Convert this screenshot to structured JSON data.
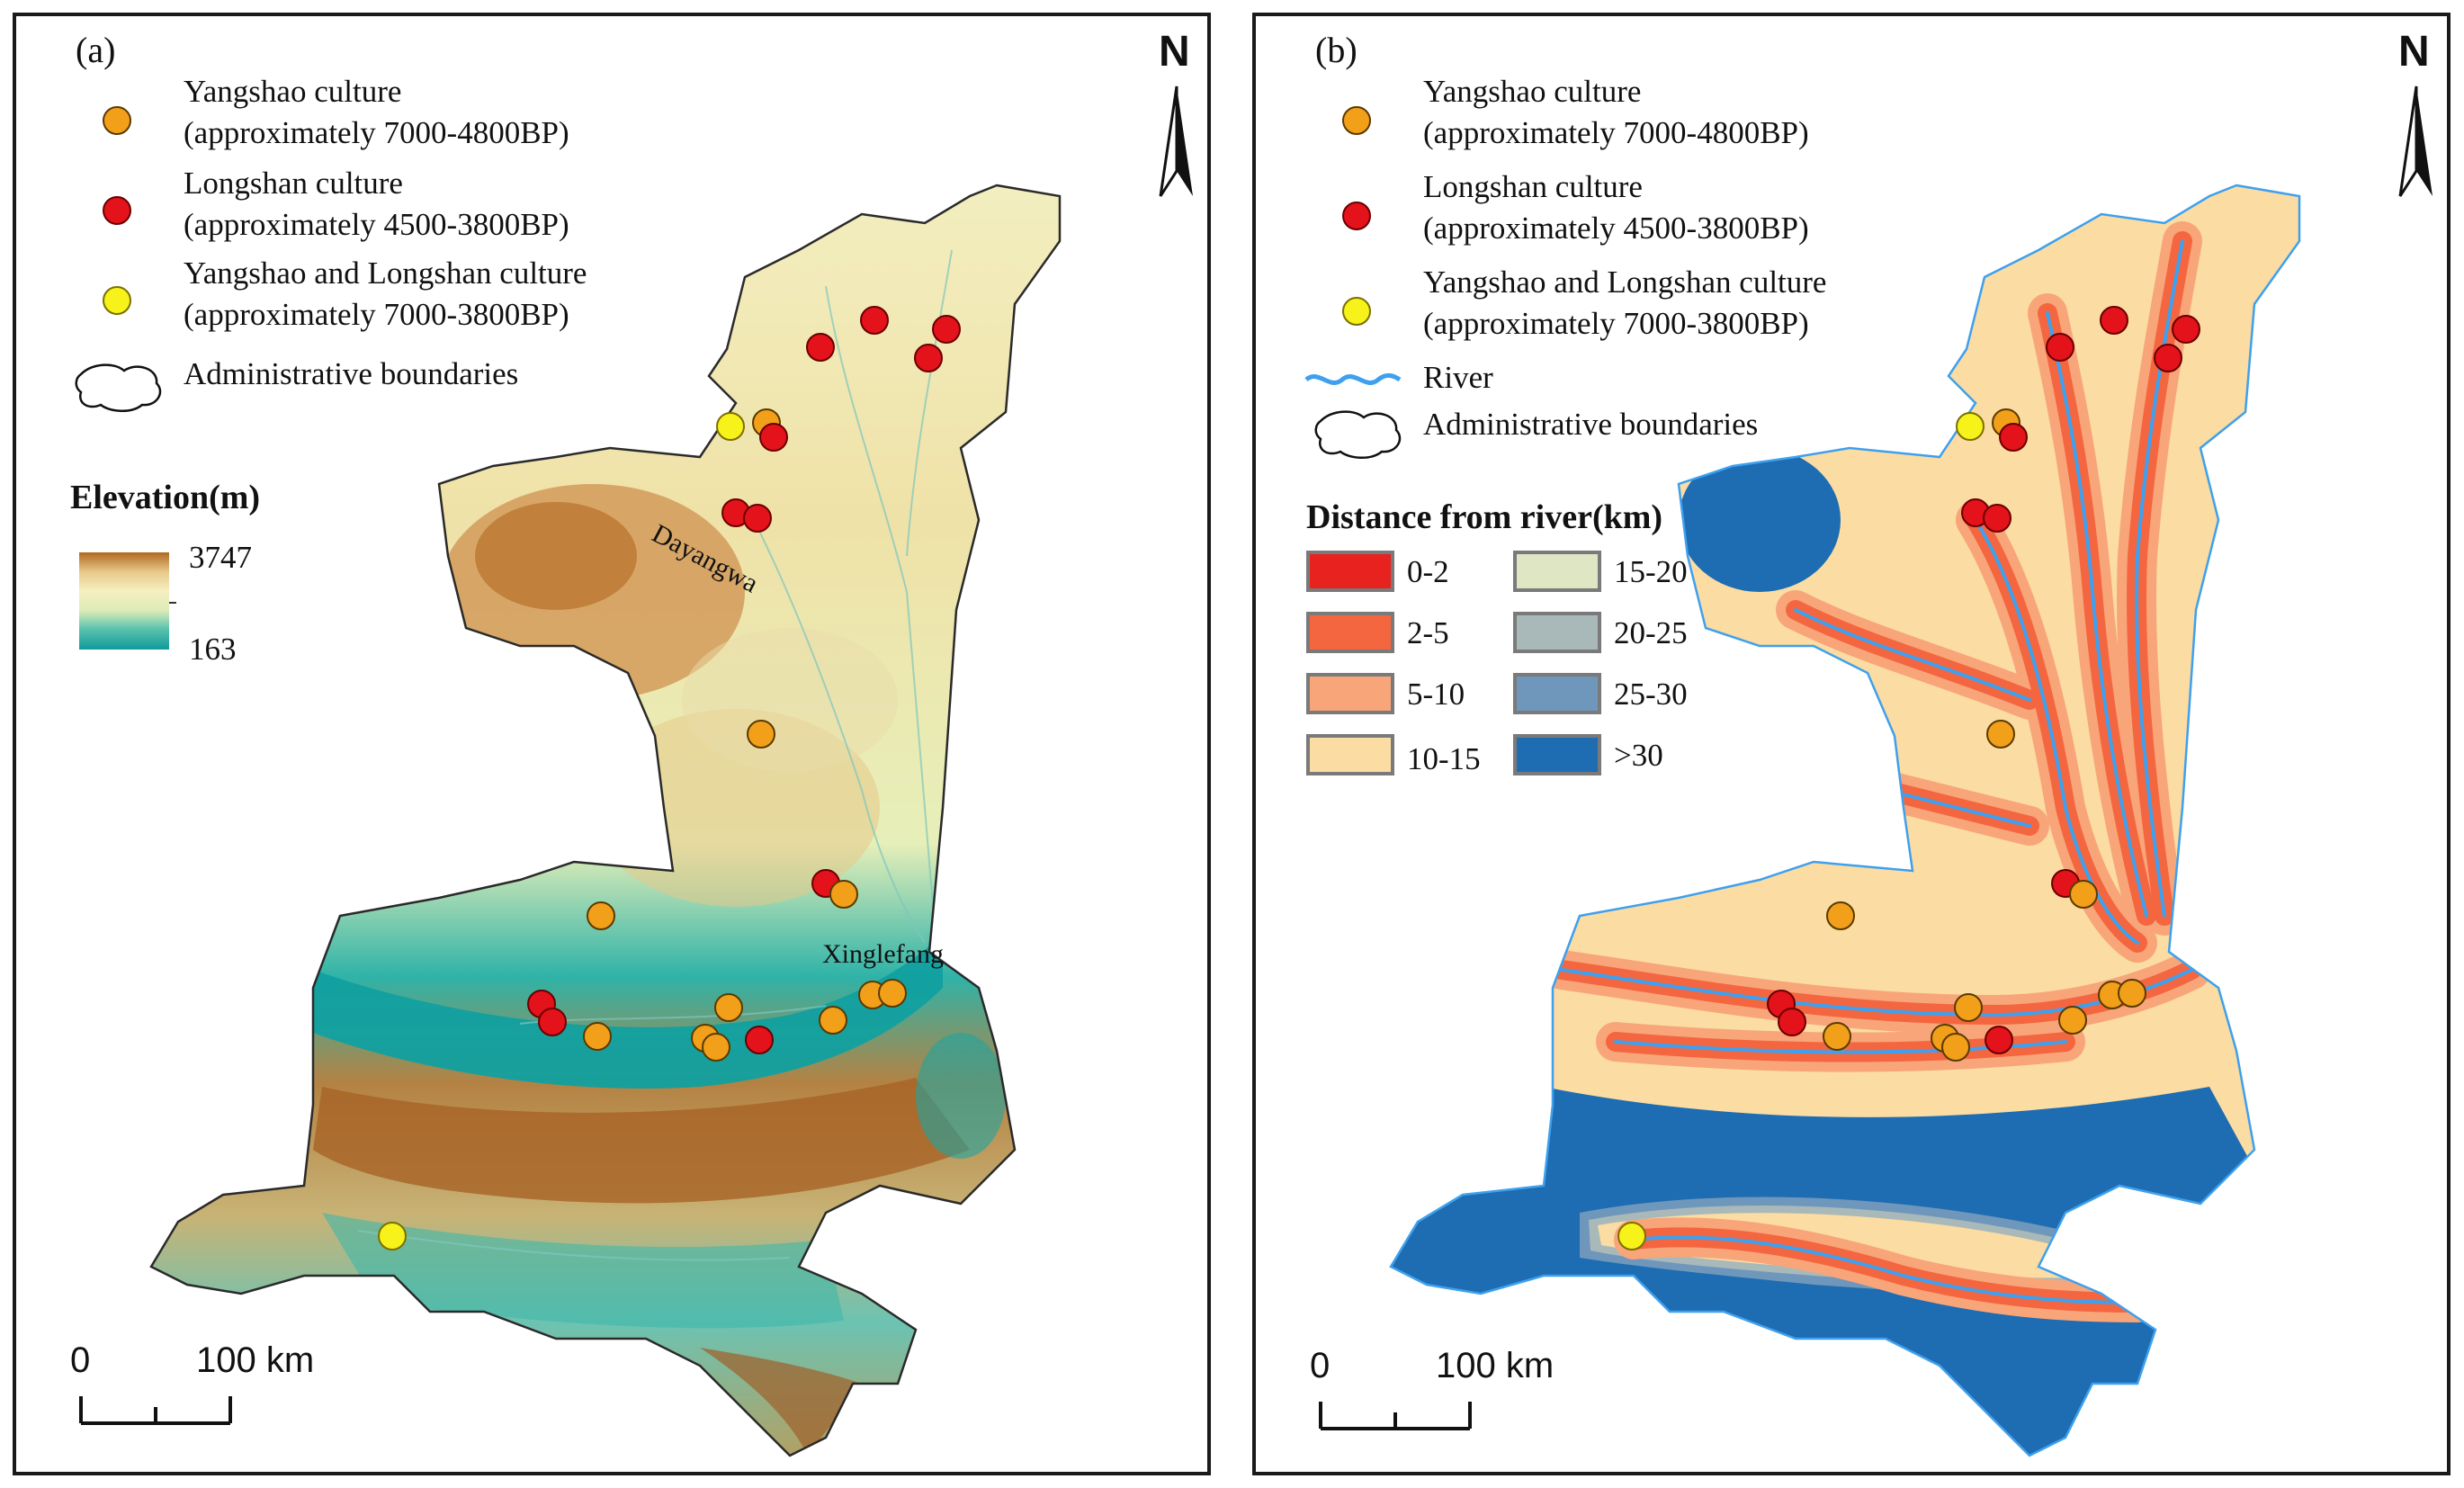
{
  "panel_a": {
    "tag": "(a)",
    "north": "N",
    "legend": {
      "yangshao": {
        "name": "Yangshao culture",
        "period": "(approximately 7000-4800BP)"
      },
      "longshan": {
        "name": "Longshan culture",
        "period": "(approximately 4500-3800BP)"
      },
      "both": {
        "name": "Yangshao and Longshan culture",
        "period": "(approximately 7000-3800BP)"
      },
      "boundary": "Administrative boundaries"
    },
    "elevation": {
      "title": "Elevation(m)",
      "max": "3747",
      "min": "163"
    },
    "places": {
      "dayangwa": "Dayangwa",
      "xinglefang": "Xinglefang"
    },
    "scale": {
      "zero": "0",
      "distance": "100 km"
    }
  },
  "panel_b": {
    "tag": "(b)",
    "north": "N",
    "legend": {
      "yangshao": {
        "name": "Yangshao culture",
        "period": "(approximately 7000-4800BP)"
      },
      "longshan": {
        "name": "Longshan culture",
        "period": "(approximately 4500-3800BP)"
      },
      "both": {
        "name": "Yangshao and Longshan culture",
        "period": "(approximately 7000-3800BP)"
      },
      "river": "River",
      "boundary": "Administrative boundaries"
    },
    "distance": {
      "title": "Distance from river(km)",
      "classes": [
        {
          "label": "0-2",
          "color": "#e8221f"
        },
        {
          "label": "2-5",
          "color": "#f4663f"
        },
        {
          "label": "5-10",
          "color": "#f8a57a"
        },
        {
          "label": "10-15",
          "color": "#fbdca3"
        },
        {
          "label": "15-20",
          "color": "#dfe6c3"
        },
        {
          "label": "20-25",
          "color": "#a9b9b9"
        },
        {
          "label": "25-30",
          "color": "#6f97bb"
        },
        {
          "label": ">30",
          "color": "#1e6cb2"
        }
      ]
    },
    "scale": {
      "zero": "0",
      "distance": "100 km"
    }
  },
  "colors": {
    "yangshao": "#f29f1a",
    "longshan": "#e3121b",
    "both": "#f7f21a",
    "river": "#3ea0ee",
    "elev_high": "#9c5415",
    "elev_mid": "#f7f0c2",
    "elev_low": "#0f9a9a"
  }
}
